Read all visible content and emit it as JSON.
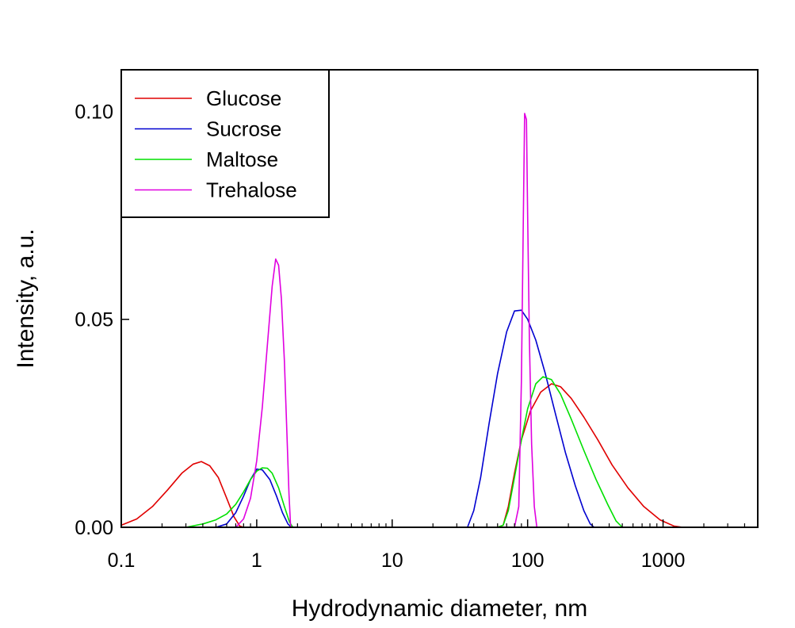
{
  "chart_data": {
    "type": "line",
    "title": "",
    "xlabel": "Hydrodynamic diameter, nm",
    "ylabel": "Intensity, a.u.",
    "x_scale": "log",
    "xlim": [
      0.1,
      5000
    ],
    "ylim": [
      0,
      0.11
    ],
    "x_ticks": [
      0.1,
      1,
      10,
      100,
      1000
    ],
    "x_tick_labels": [
      "0.1",
      "1",
      "10",
      "100",
      "1000"
    ],
    "y_ticks": [
      0,
      0.05,
      0.1
    ],
    "y_tick_labels": [
      "0.00",
      "0.05",
      "0.10"
    ],
    "grid": false,
    "legend_position": "top-left",
    "series": [
      {
        "name": "Glucose",
        "color": "#e00000",
        "points": [
          [
            0.1,
            0.0005
          ],
          [
            0.13,
            0.002
          ],
          [
            0.17,
            0.005
          ],
          [
            0.22,
            0.009
          ],
          [
            0.28,
            0.013
          ],
          [
            0.34,
            0.0152
          ],
          [
            0.39,
            0.0158
          ],
          [
            0.45,
            0.0148
          ],
          [
            0.52,
            0.012
          ],
          [
            0.6,
            0.007
          ],
          [
            0.68,
            0.0025
          ],
          [
            0.75,
            0.0003
          ],
          [
            0.8,
            0.0
          ],
          [
            60,
            0.0
          ],
          [
            66,
            0.0005
          ],
          [
            72,
            0.005
          ],
          [
            80,
            0.013
          ],
          [
            90,
            0.021
          ],
          [
            105,
            0.028
          ],
          [
            125,
            0.0325
          ],
          [
            150,
            0.0345
          ],
          [
            175,
            0.0338
          ],
          [
            210,
            0.031
          ],
          [
            260,
            0.0265
          ],
          [
            330,
            0.021
          ],
          [
            420,
            0.015
          ],
          [
            550,
            0.0095
          ],
          [
            720,
            0.005
          ],
          [
            950,
            0.0018
          ],
          [
            1200,
            0.0003
          ],
          [
            1400,
            0.0
          ],
          [
            5000,
            0.0
          ]
        ]
      },
      {
        "name": "Sucrose",
        "color": "#0000d0",
        "points": [
          [
            0.1,
            0.0
          ],
          [
            0.5,
            0.0
          ],
          [
            0.6,
            0.0008
          ],
          [
            0.7,
            0.0035
          ],
          [
            0.8,
            0.0075
          ],
          [
            0.9,
            0.0115
          ],
          [
            1.0,
            0.014
          ],
          [
            1.1,
            0.0138
          ],
          [
            1.25,
            0.0115
          ],
          [
            1.4,
            0.0075
          ],
          [
            1.55,
            0.0035
          ],
          [
            1.7,
            0.0008
          ],
          [
            1.8,
            0.0
          ],
          [
            36,
            0.0
          ],
          [
            40,
            0.004
          ],
          [
            45,
            0.012
          ],
          [
            52,
            0.025
          ],
          [
            60,
            0.037
          ],
          [
            70,
            0.047
          ],
          [
            80,
            0.052
          ],
          [
            90,
            0.0522
          ],
          [
            100,
            0.05
          ],
          [
            115,
            0.045
          ],
          [
            135,
            0.037
          ],
          [
            160,
            0.0275
          ],
          [
            190,
            0.018
          ],
          [
            225,
            0.01
          ],
          [
            260,
            0.004
          ],
          [
            290,
            0.0008
          ],
          [
            310,
            0.0
          ],
          [
            5000,
            0.0
          ]
        ]
      },
      {
        "name": "Maltose",
        "color": "#00e000",
        "points": [
          [
            0.1,
            0.0
          ],
          [
            0.3,
            0.0
          ],
          [
            0.4,
            0.0008
          ],
          [
            0.5,
            0.0018
          ],
          [
            0.6,
            0.0032
          ],
          [
            0.7,
            0.0055
          ],
          [
            0.8,
            0.0085
          ],
          [
            0.9,
            0.0115
          ],
          [
            1.0,
            0.0135
          ],
          [
            1.1,
            0.0143
          ],
          [
            1.2,
            0.0142
          ],
          [
            1.3,
            0.013
          ],
          [
            1.45,
            0.0095
          ],
          [
            1.6,
            0.005
          ],
          [
            1.75,
            0.0012
          ],
          [
            1.85,
            0.0
          ],
          [
            60,
            0.0
          ],
          [
            66,
            0.0005
          ],
          [
            72,
            0.004
          ],
          [
            80,
            0.012
          ],
          [
            90,
            0.021
          ],
          [
            100,
            0.0285
          ],
          [
            115,
            0.0345
          ],
          [
            130,
            0.0362
          ],
          [
            150,
            0.0355
          ],
          [
            175,
            0.032
          ],
          [
            210,
            0.026
          ],
          [
            260,
            0.0185
          ],
          [
            320,
            0.0115
          ],
          [
            390,
            0.0055
          ],
          [
            450,
            0.0015
          ],
          [
            500,
            0.0
          ],
          [
            5000,
            0.0
          ]
        ]
      },
      {
        "name": "Trehalose",
        "color": "#e000e0",
        "points": [
          [
            0.1,
            0.0
          ],
          [
            0.7,
            0.0
          ],
          [
            0.8,
            0.002
          ],
          [
            0.9,
            0.007
          ],
          [
            1.0,
            0.016
          ],
          [
            1.1,
            0.029
          ],
          [
            1.2,
            0.044
          ],
          [
            1.3,
            0.058
          ],
          [
            1.38,
            0.0645
          ],
          [
            1.45,
            0.063
          ],
          [
            1.52,
            0.055
          ],
          [
            1.6,
            0.04
          ],
          [
            1.67,
            0.023
          ],
          [
            1.73,
            0.008
          ],
          [
            1.78,
            0.0
          ],
          [
            80,
            0.0
          ],
          [
            86,
            0.005
          ],
          [
            90,
            0.035
          ],
          [
            93,
            0.075
          ],
          [
            95,
            0.0995
          ],
          [
            98,
            0.098
          ],
          [
            100,
            0.075
          ],
          [
            103,
            0.045
          ],
          [
            107,
            0.02
          ],
          [
            112,
            0.005
          ],
          [
            117,
            0.0
          ],
          [
            5000,
            0.0
          ]
        ]
      }
    ]
  }
}
